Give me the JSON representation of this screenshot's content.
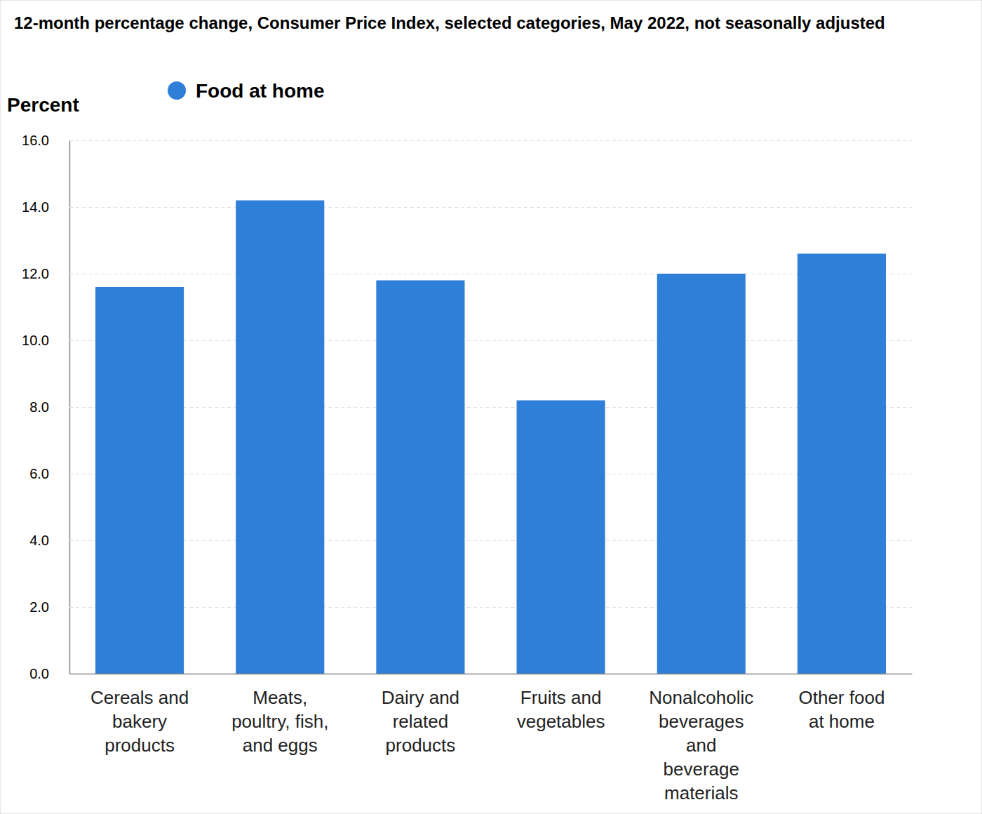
{
  "chart_data": {
    "type": "bar",
    "title": "12-month percentage change, Consumer Price Index, selected categories, May 2022, not seasonally adjusted",
    "ylabel": "Percent",
    "categories": [
      "Cereals and bakery products",
      "Meats, poultry, fish, and eggs",
      "Dairy and related products",
      "Fruits and vegetables",
      "Nonalcoholic beverages and beverage materials",
      "Other food at home"
    ],
    "series": [
      {
        "name": "Food at home",
        "color": "#2f7ed8",
        "values": [
          11.6,
          14.2,
          11.8,
          8.2,
          12.0,
          12.6
        ]
      }
    ],
    "ylim": [
      0,
      16
    ],
    "yticks": [
      {
        "value": 0,
        "label": "0.0"
      },
      {
        "value": 2,
        "label": "2.0"
      },
      {
        "value": 4,
        "label": "4.0"
      },
      {
        "value": 6,
        "label": "6.0"
      },
      {
        "value": 8,
        "label": "8.0"
      },
      {
        "value": 10,
        "label": "10.0"
      },
      {
        "value": 12,
        "label": "12.0"
      },
      {
        "value": 14,
        "label": "14.0"
      },
      {
        "value": 16,
        "label": "16.0"
      }
    ],
    "grid": true,
    "legend": "top-left"
  }
}
